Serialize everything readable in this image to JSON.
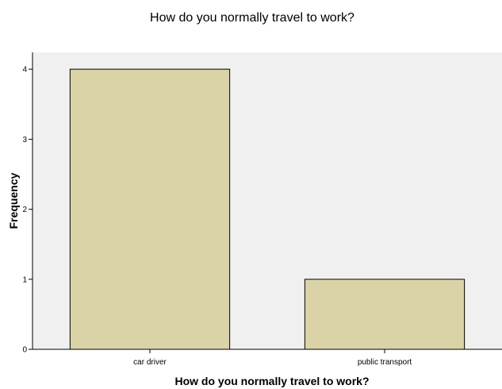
{
  "chart_data": {
    "type": "bar",
    "title": "How do you normally travel to work?",
    "xlabel": "How do you normally travel to work?",
    "ylabel": "Frequency",
    "categories": [
      "car driver",
      "public transport"
    ],
    "values": [
      4,
      1
    ],
    "ylim": [
      0,
      4.24
    ],
    "yticks": [
      0,
      1,
      2,
      3,
      4
    ],
    "grid": false,
    "colors": {
      "plot_background": "#f0f0f0",
      "bar_fill": "#d9d3a6",
      "bar_stroke": "#000000",
      "axis": "#000000"
    }
  }
}
